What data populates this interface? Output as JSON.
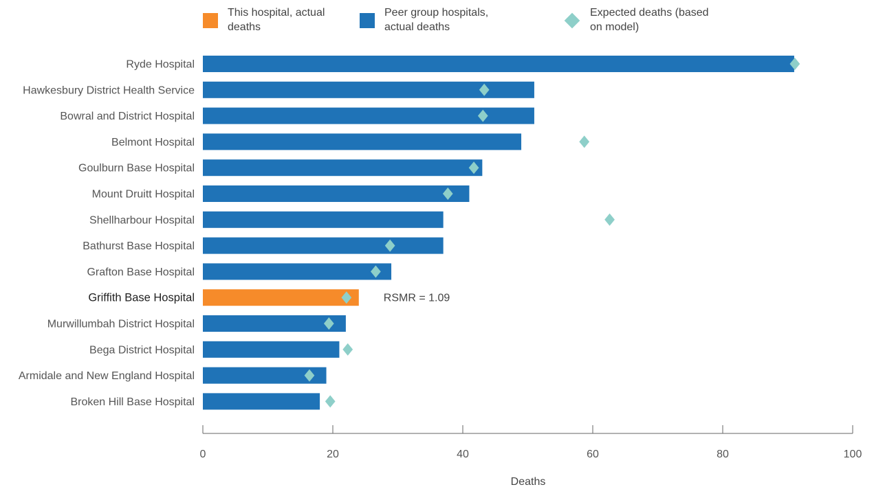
{
  "legend": {
    "this_hospital": "This hospital, actual deaths",
    "peer_group": "Peer group hospitals, actual deaths",
    "expected": "Expected deaths (based on model)"
  },
  "chart_data": {
    "type": "bar",
    "orientation": "horizontal",
    "categories": [
      "Ryde Hospital",
      "Hawkesbury District Health Service",
      "Bowral and District Hospital",
      "Belmont Hospital",
      "Goulburn Base Hospital",
      "Mount Druitt Hospital",
      "Shellharbour Hospital",
      "Bathurst Base Hospital",
      "Grafton Base Hospital",
      "Griffith Base Hospital",
      "Murwillumbah District Hospital",
      "Bega District Hospital",
      "Armidale and New England Hospital",
      "Broken Hill Base Hospital"
    ],
    "series": [
      {
        "name": "Actual deaths",
        "values": [
          91,
          51,
          51,
          49,
          43,
          41,
          37,
          37,
          29,
          24,
          22,
          21,
          19,
          18
        ]
      },
      {
        "name": "Expected deaths (based on model)",
        "values": [
          91.1,
          43.3,
          43.1,
          58.7,
          41.7,
          37.7,
          62.6,
          28.8,
          26.6,
          22.1,
          19.4,
          22.3,
          16.4,
          19.6
        ]
      }
    ],
    "highlight_category": "Griffith Base Hospital",
    "annotation": "RSMR = 1.09",
    "xlabel": "Deaths",
    "xlim": [
      0,
      100
    ],
    "xticks": [
      0,
      20,
      40,
      60,
      80,
      100
    ],
    "colors": {
      "this_hospital": "#f68b2a",
      "peer": "#1f73b7",
      "expected": "#8ecfc9"
    },
    "grid": false,
    "legend_position": "top"
  }
}
